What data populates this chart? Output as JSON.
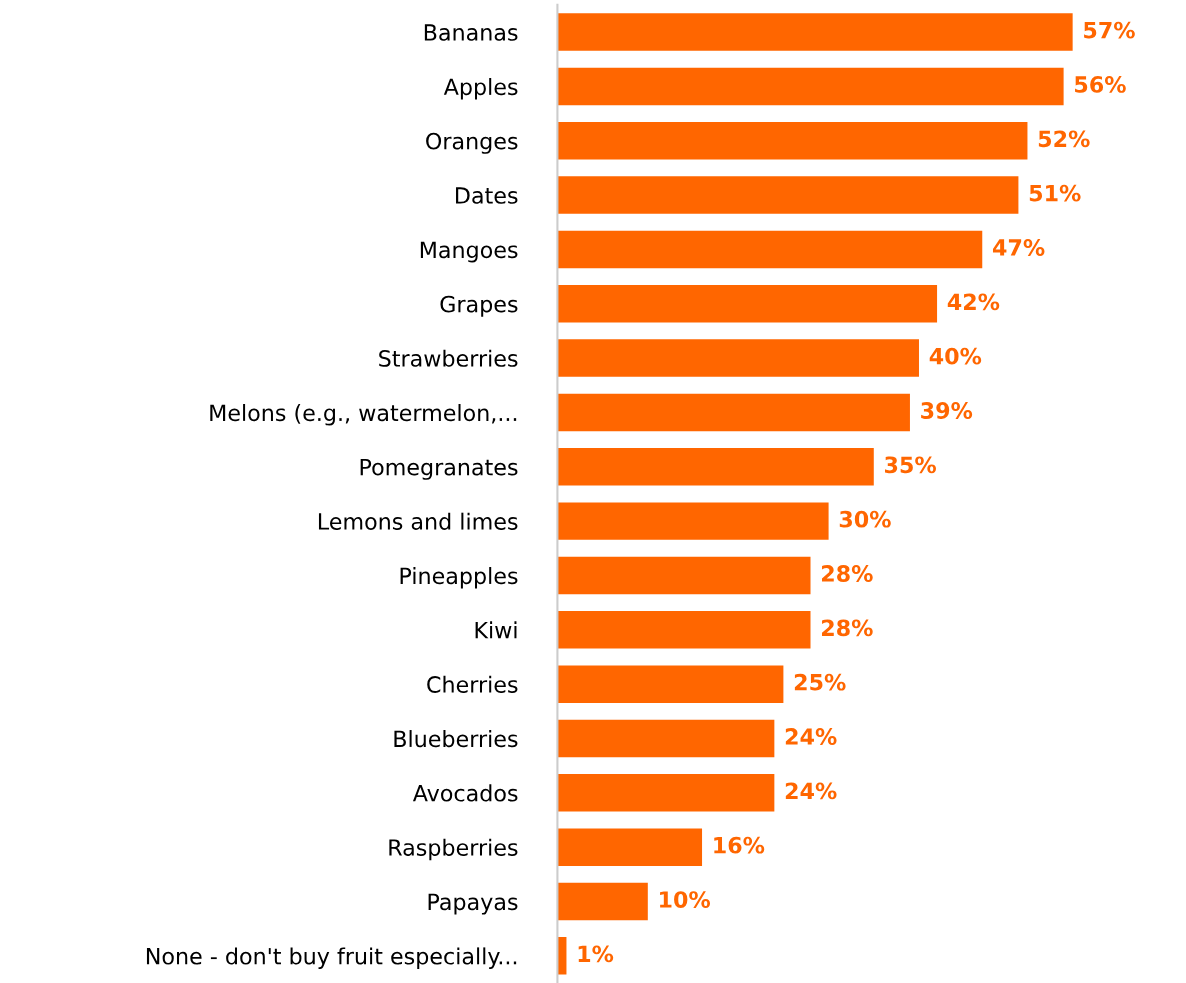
{
  "chart_data": {
    "type": "bar",
    "orientation": "horizontal",
    "categories": [
      "Bananas",
      "Apples",
      "Oranges",
      "Dates",
      "Mangoes",
      "Grapes",
      "Strawberries",
      "Melons (e.g., watermelon,...",
      "Pomegranates",
      "Lemons and limes",
      "Pineapples",
      "Kiwi",
      "Cherries",
      "Blueberries",
      "Avocados",
      "Raspberries",
      "Papayas",
      "None - don't buy fruit especially..."
    ],
    "values": [
      57,
      56,
      52,
      51,
      47,
      42,
      40,
      39,
      35,
      30,
      28,
      28,
      25,
      24,
      24,
      16,
      10,
      1
    ],
    "value_labels": [
      "57%",
      "56%",
      "52%",
      "51%",
      "47%",
      "42%",
      "40%",
      "39%",
      "35%",
      "30%",
      "28%",
      "28%",
      "25%",
      "24%",
      "24%",
      "16%",
      "10%",
      "1%"
    ],
    "color": "#ff6600",
    "tick_labels": "y",
    "grid": false,
    "legend": false
  }
}
